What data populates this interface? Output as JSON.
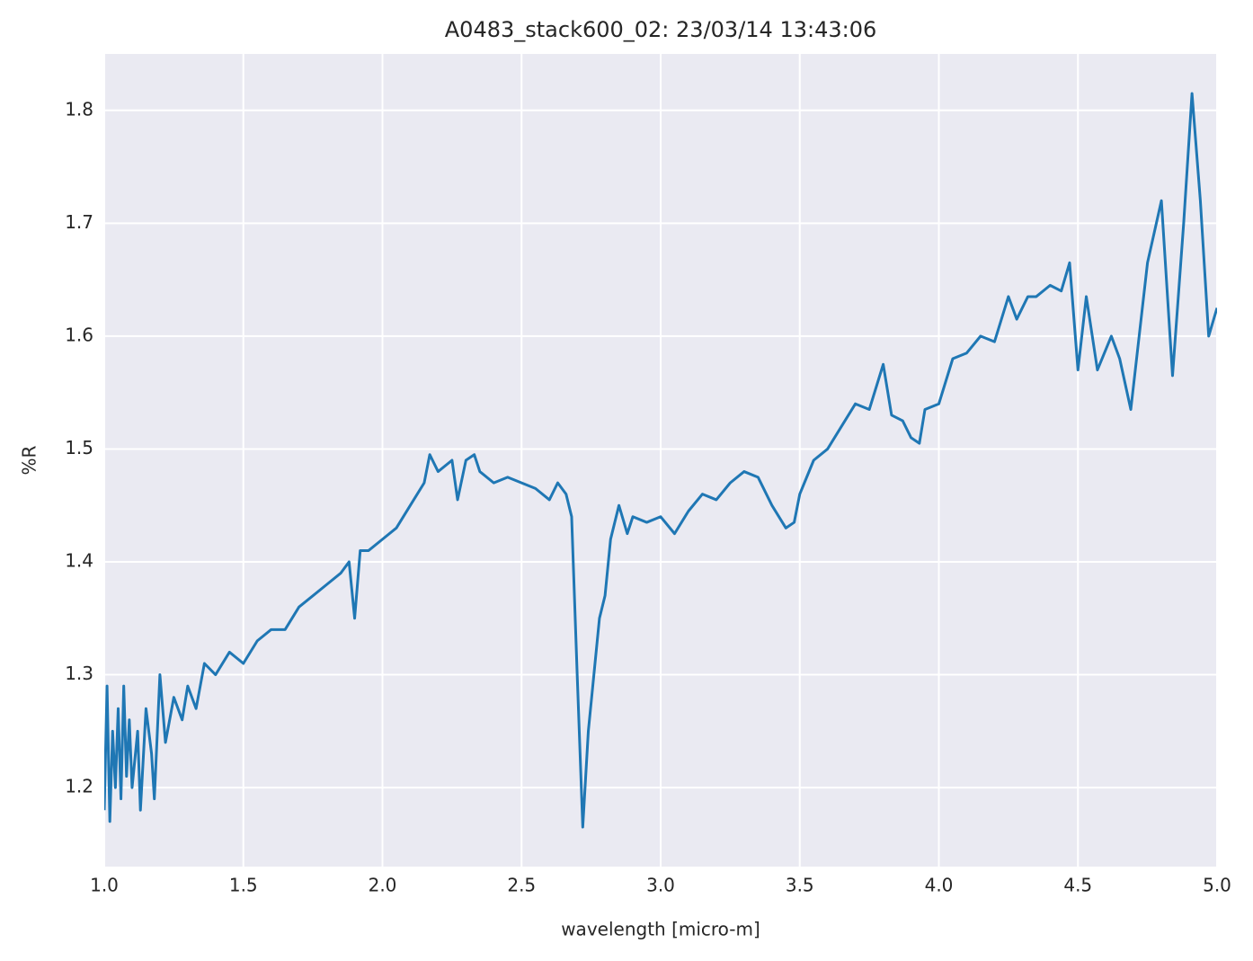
{
  "chart_data": {
    "type": "line",
    "title": "A0483_stack600_02:  23/03/14 13:43:06",
    "x_label": "wavelength [micro-m]",
    "y_label": "%R",
    "x": [
      1.0,
      1.01,
      1.02,
      1.03,
      1.04,
      1.05,
      1.06,
      1.07,
      1.08,
      1.09,
      1.1,
      1.12,
      1.13,
      1.15,
      1.17,
      1.18,
      1.2,
      1.22,
      1.25,
      1.28,
      1.3,
      1.33,
      1.36,
      1.4,
      1.45,
      1.5,
      1.55,
      1.6,
      1.65,
      1.7,
      1.75,
      1.8,
      1.85,
      1.88,
      1.9,
      1.92,
      1.95,
      2.0,
      2.05,
      2.1,
      2.15,
      2.17,
      2.2,
      2.25,
      2.27,
      2.3,
      2.33,
      2.35,
      2.4,
      2.45,
      2.5,
      2.55,
      2.6,
      2.63,
      2.66,
      2.68,
      2.7,
      2.72,
      2.74,
      2.76,
      2.78,
      2.8,
      2.82,
      2.85,
      2.88,
      2.9,
      2.95,
      3.0,
      3.05,
      3.1,
      3.15,
      3.2,
      3.25,
      3.3,
      3.35,
      3.4,
      3.45,
      3.48,
      3.5,
      3.55,
      3.6,
      3.65,
      3.7,
      3.75,
      3.8,
      3.83,
      3.87,
      3.9,
      3.93,
      3.95,
      4.0,
      4.05,
      4.1,
      4.15,
      4.2,
      4.25,
      4.28,
      4.32,
      4.35,
      4.4,
      4.44,
      4.47,
      4.5,
      4.53,
      4.57,
      4.62,
      4.65,
      4.69,
      4.72,
      4.75,
      4.8,
      4.84,
      4.88,
      4.91,
      4.94,
      4.97,
      5.0
    ],
    "series": [
      {
        "name": "%R",
        "color": "#1f77b4",
        "values": [
          1.18,
          1.29,
          1.17,
          1.25,
          1.2,
          1.27,
          1.19,
          1.29,
          1.21,
          1.26,
          1.2,
          1.25,
          1.18,
          1.27,
          1.23,
          1.19,
          1.3,
          1.24,
          1.28,
          1.26,
          1.29,
          1.27,
          1.31,
          1.3,
          1.32,
          1.31,
          1.33,
          1.34,
          1.34,
          1.36,
          1.37,
          1.38,
          1.39,
          1.4,
          1.35,
          1.41,
          1.41,
          1.42,
          1.43,
          1.45,
          1.47,
          1.495,
          1.48,
          1.49,
          1.455,
          1.49,
          1.495,
          1.48,
          1.47,
          1.475,
          1.47,
          1.465,
          1.455,
          1.47,
          1.46,
          1.44,
          1.3,
          1.165,
          1.25,
          1.3,
          1.35,
          1.37,
          1.42,
          1.45,
          1.425,
          1.44,
          1.435,
          1.44,
          1.425,
          1.445,
          1.46,
          1.455,
          1.47,
          1.48,
          1.475,
          1.45,
          1.43,
          1.435,
          1.46,
          1.49,
          1.5,
          1.52,
          1.54,
          1.535,
          1.575,
          1.53,
          1.525,
          1.51,
          1.505,
          1.535,
          1.54,
          1.58,
          1.585,
          1.6,
          1.595,
          1.635,
          1.615,
          1.635,
          1.635,
          1.645,
          1.64,
          1.665,
          1.57,
          1.635,
          1.57,
          1.6,
          1.58,
          1.535,
          1.6,
          1.665,
          1.72,
          1.565,
          1.7,
          1.815,
          1.72,
          1.6,
          1.625
        ]
      }
    ],
    "xlim": [
      1.0,
      5.0
    ],
    "xticks": [
      {
        "value": 1,
        "label": "1.0"
      },
      1.5,
      {
        "value": 2,
        "label": "2.0"
      },
      2.5,
      {
        "value": 3,
        "label": "3.0"
      },
      3.5,
      {
        "value": 4,
        "label": "4.0"
      },
      4.5,
      {
        "value": 5,
        "label": "5.0"
      }
    ],
    "ylim": [
      1.13,
      1.85
    ],
    "yticks": [
      1.2,
      1.3,
      1.4,
      1.5,
      1.6,
      1.7,
      1.8
    ],
    "grid": true
  }
}
